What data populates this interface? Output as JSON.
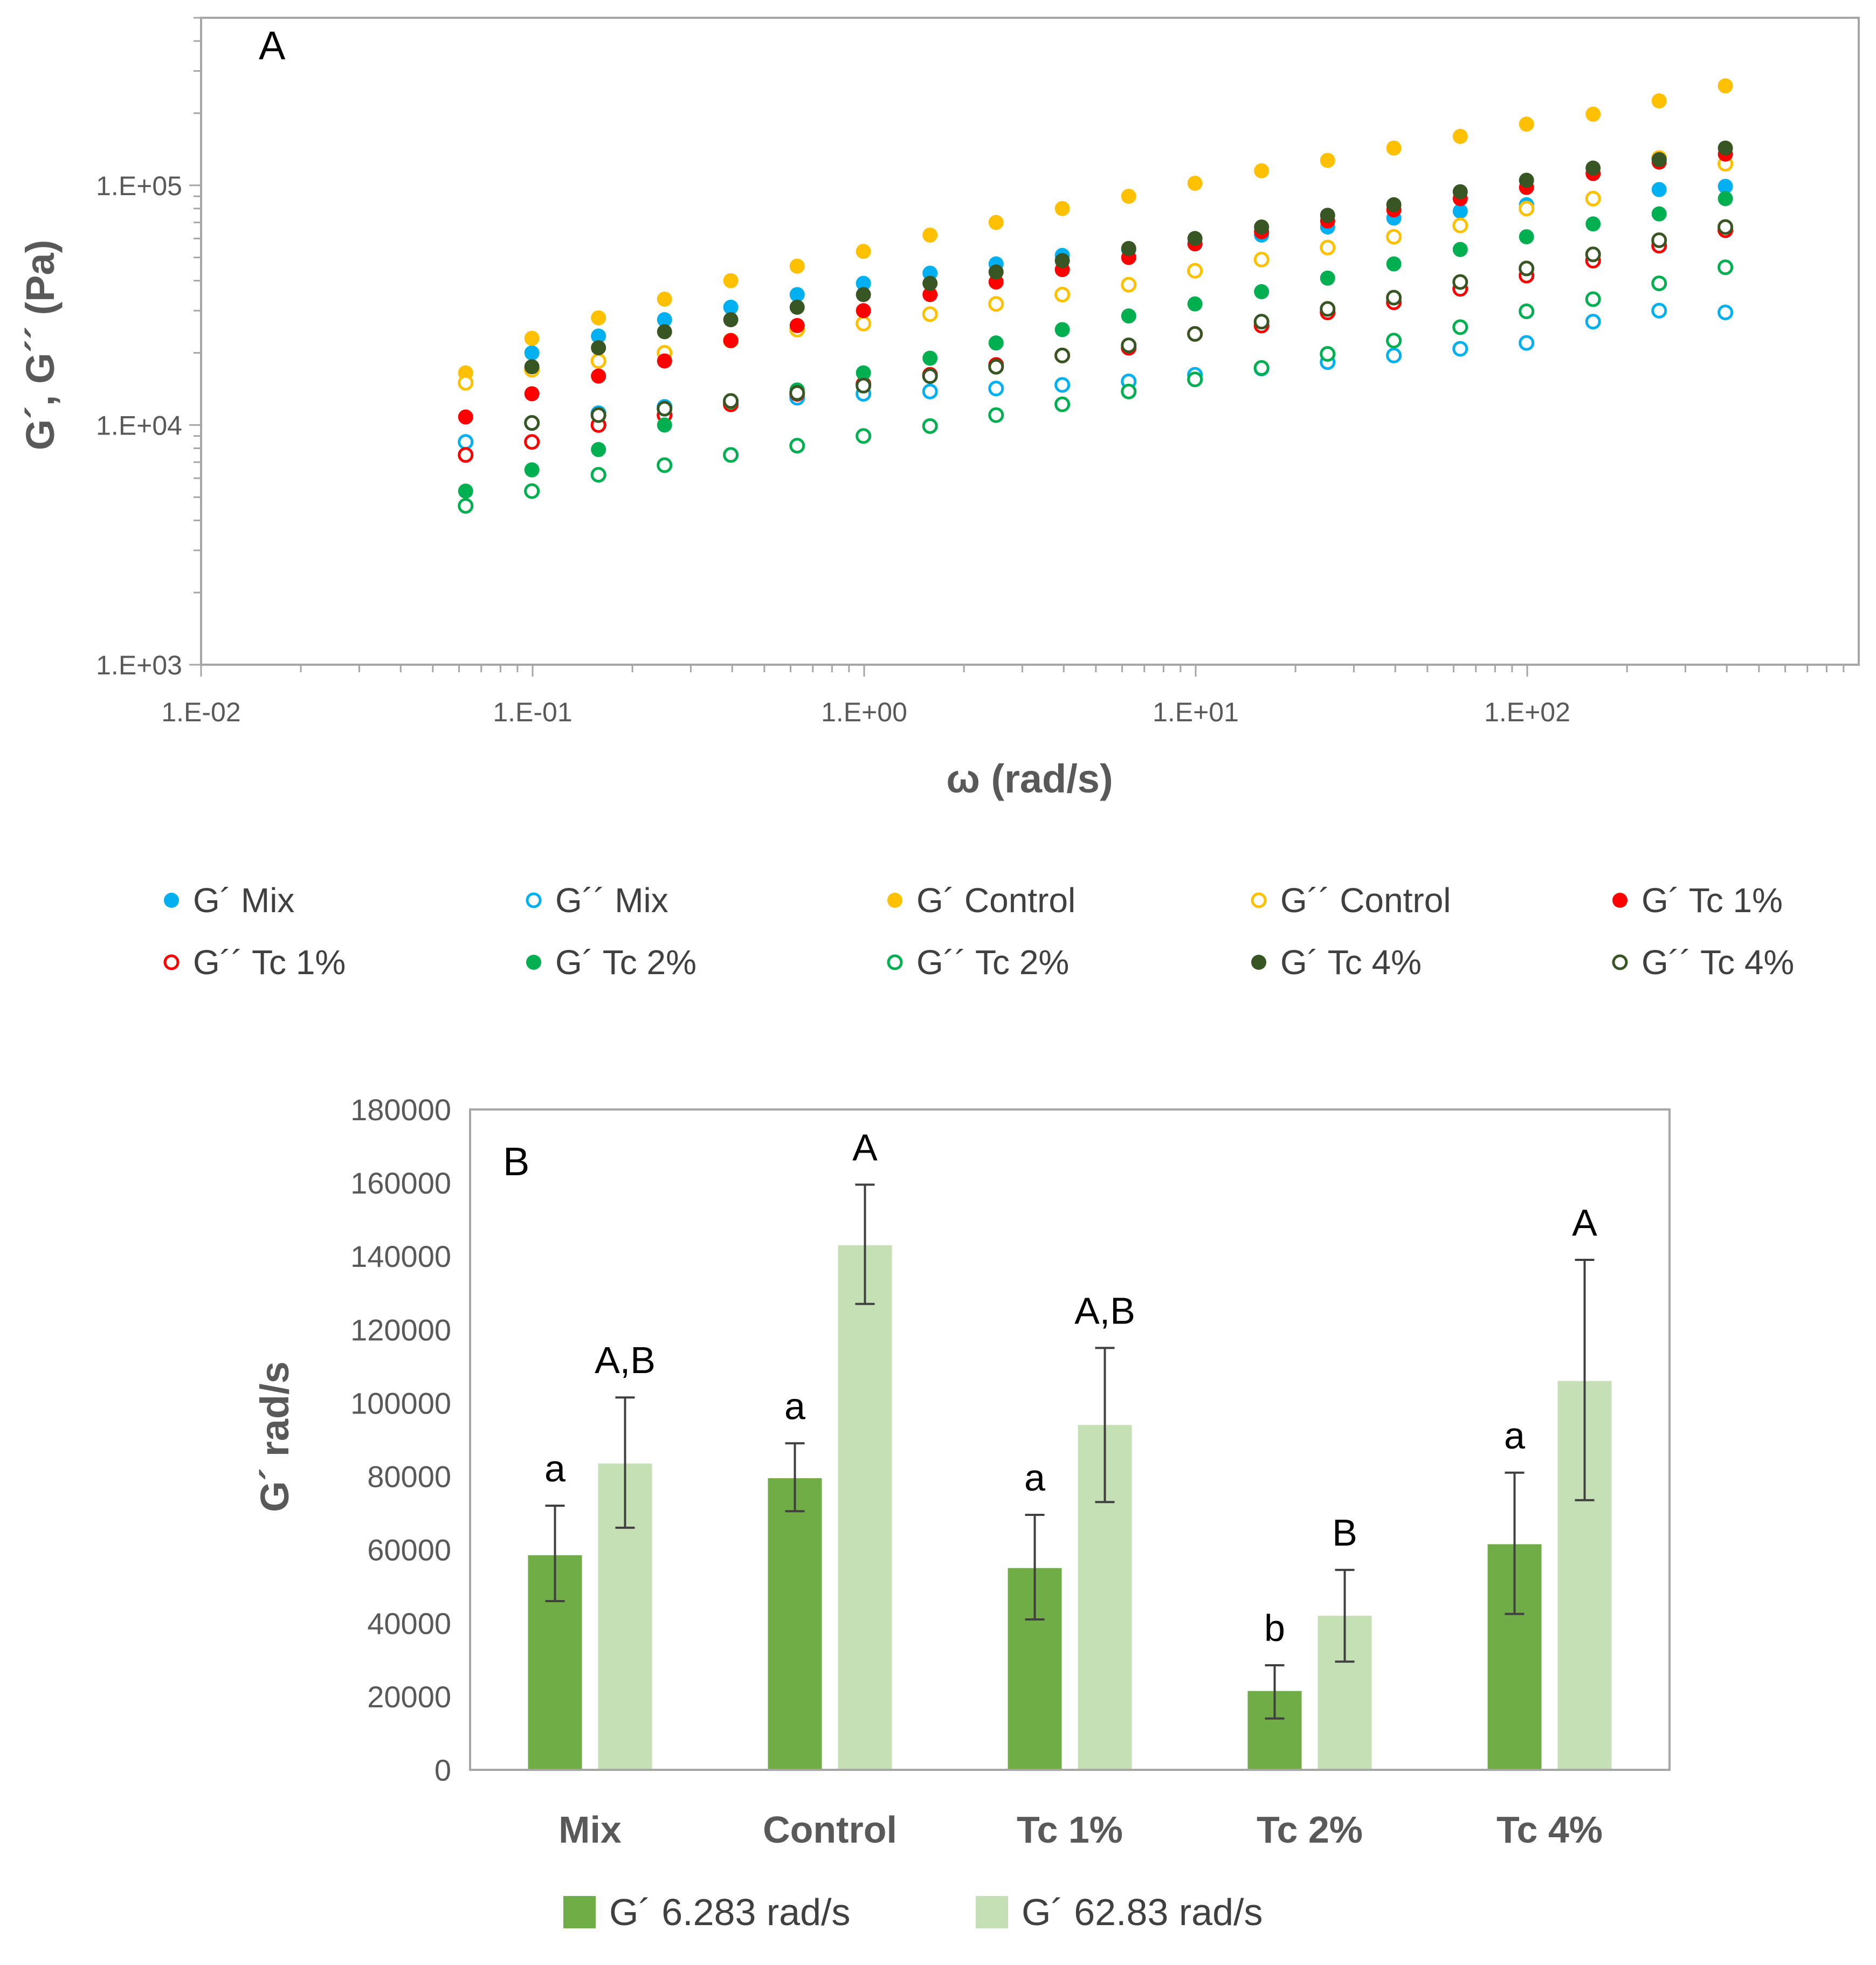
{
  "chart_data": [
    {
      "type": "scatter",
      "panel": "A",
      "xlabel": "ω (rad/s)",
      "ylabel": "G´, G´´ (Pa)",
      "xscale": "log",
      "yscale": "log",
      "xlim": [
        0.01,
        1000
      ],
      "ylim": [
        1000,
        500000
      ],
      "xticks": [
        0.01,
        0.1,
        1,
        10,
        100
      ],
      "xtick_labels": [
        "1.E-02",
        "1.E-01",
        "1.E+00",
        "1.E+01",
        "1.E+02"
      ],
      "yticks": [
        1000,
        10000,
        100000
      ],
      "ytick_labels": [
        "1.E+03",
        "1.E+04",
        "1.E+05"
      ],
      "x": [
        0.0628,
        0.0995,
        0.158,
        0.25,
        0.396,
        0.628,
        0.995,
        1.58,
        2.5,
        3.96,
        6.28,
        9.95,
        15.8,
        25,
        39.6,
        62.8,
        99.5,
        158,
        250,
        396
      ],
      "series": [
        {
          "name": "G´ Mix",
          "color": "#00B0F0",
          "filled": true,
          "values": [
            null,
            20000,
            23500,
            27500,
            31000,
            35000,
            39000,
            43000,
            47000,
            51000,
            54000,
            57000,
            62000,
            67000,
            73000,
            78000,
            83000,
            88000,
            96000,
            99000
          ]
        },
        {
          "name": "G´´ Mix",
          "color": "#00B0F0",
          "filled": false,
          "values": [
            8500,
            10200,
            11200,
            11900,
            12400,
            13000,
            13500,
            13800,
            14200,
            14700,
            15200,
            16200,
            17200,
            18300,
            19500,
            20800,
            22000,
            27000,
            30000,
            29500
          ]
        },
        {
          "name": "G´ Control",
          "color": "#FFC000",
          "filled": true,
          "values": [
            16500,
            23000,
            28000,
            33500,
            40000,
            46000,
            53000,
            62000,
            70000,
            80000,
            90000,
            102000,
            115000,
            127000,
            143000,
            160000,
            180000,
            198000,
            225000,
            260000
          ]
        },
        {
          "name": "G´´ Control",
          "color": "#FFC000",
          "filled": false,
          "values": [
            15000,
            17000,
            18500,
            20000,
            22500,
            25000,
            26500,
            29000,
            32000,
            35000,
            38500,
            44000,
            49000,
            55000,
            61000,
            68000,
            80000,
            88000,
            130000,
            123000
          ]
        },
        {
          "name": "G´ Tc 1%",
          "color": "#FF0000",
          "filled": true,
          "values": [
            10800,
            13500,
            16000,
            18500,
            22500,
            26000,
            30000,
            35000,
            39500,
            44500,
            50000,
            57000,
            64000,
            71000,
            79000,
            88000,
            98000,
            112000,
            125000,
            135000
          ]
        },
        {
          "name": "G´´ Tc 1%",
          "color": "#FF0000",
          "filled": false,
          "values": [
            7500,
            8500,
            10000,
            11000,
            12200,
            13500,
            14800,
            16200,
            17800,
            19500,
            21000,
            24000,
            26000,
            29500,
            32500,
            37000,
            42000,
            48500,
            56000,
            65000
          ]
        },
        {
          "name": "G´ Tc 2%",
          "color": "#00B050",
          "filled": true,
          "values": [
            5300,
            6500,
            7900,
            10000,
            12500,
            14000,
            16500,
            19000,
            22000,
            25000,
            28500,
            32000,
            36000,
            41000,
            47000,
            54000,
            61000,
            69000,
            76000,
            88000
          ]
        },
        {
          "name": "G´´ Tc 2%",
          "color": "#00B050",
          "filled": false,
          "values": [
            4600,
            5300,
            6200,
            6800,
            7500,
            8200,
            9000,
            9900,
            11000,
            12200,
            13800,
            15500,
            17300,
            19800,
            22500,
            25600,
            29800,
            33500,
            39000,
            45500
          ]
        },
        {
          "name": "G´ Tc 4%",
          "color": "#375623",
          "filled": true,
          "values": [
            null,
            17500,
            21000,
            24500,
            27500,
            31000,
            35000,
            39000,
            43500,
            48500,
            54500,
            60000,
            67000,
            75000,
            83000,
            94000,
            105000,
            118000,
            128000,
            143000
          ]
        },
        {
          "name": "G´´ Tc 4%",
          "color": "#375623",
          "filled": false,
          "values": [
            null,
            10200,
            11000,
            11700,
            12600,
            13600,
            14600,
            16000,
            17500,
            19500,
            21500,
            24000,
            27000,
            30500,
            34000,
            39500,
            45000,
            51500,
            59000,
            67000
          ]
        }
      ]
    },
    {
      "type": "bar",
      "panel": "B",
      "ylabel": "G´ rad/s",
      "ylim": [
        0,
        180000
      ],
      "yticks": [
        0,
        20000,
        40000,
        60000,
        80000,
        100000,
        120000,
        140000,
        160000,
        180000
      ],
      "ytick_labels": [
        "0",
        "20000",
        "40000",
        "60000",
        "80000",
        "100000",
        "120000",
        "140000",
        "160000",
        "180000"
      ],
      "categories": [
        "Mix",
        "Control",
        "Tc 1%",
        "Tc 2%",
        "Tc 4%"
      ],
      "series": [
        {
          "name": "G´ 6.283 rad/s",
          "color": "#70AD47",
          "values": [
            58500,
            79500,
            55000,
            21500,
            61500
          ],
          "err_low": [
            46000,
            70500,
            41000,
            14000,
            42500
          ],
          "err_high": [
            72000,
            89000,
            69500,
            28500,
            81000
          ],
          "letters": [
            "a",
            "a",
            "a",
            "b",
            "a"
          ]
        },
        {
          "name": "G´ 62.83 rad/s",
          "color": "#C5E0B4",
          "values": [
            83500,
            143000,
            94000,
            42000,
            106000
          ],
          "err_low": [
            66000,
            127000,
            73000,
            29500,
            73500
          ],
          "err_high": [
            101500,
            159500,
            115000,
            54500,
            139000
          ],
          "letters": [
            "A,B",
            "A",
            "A,B",
            "B",
            "A"
          ]
        }
      ]
    }
  ],
  "panel_labels": {
    "a": "A",
    "b": "B"
  }
}
